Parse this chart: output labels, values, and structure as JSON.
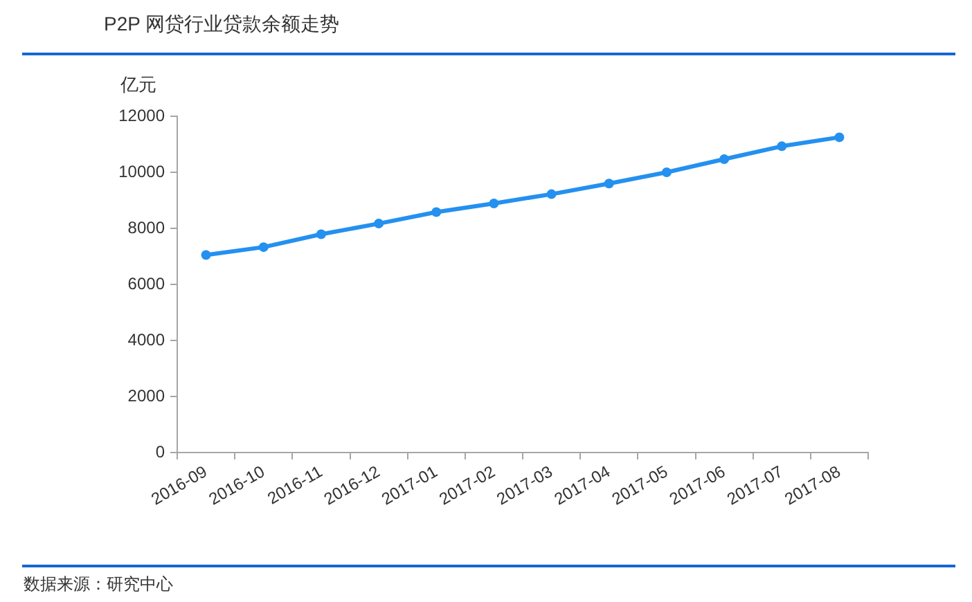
{
  "chart_data": {
    "type": "line",
    "title": "P2P 网贷行业贷款余额走势",
    "ylabel": "亿元",
    "categories": [
      "2016-09",
      "2016-10",
      "2016-11",
      "2016-12",
      "2017-01",
      "2017-02",
      "2017-03",
      "2017-04",
      "2017-05",
      "2017-06",
      "2017-07",
      "2017-08"
    ],
    "values": [
      7050,
      7330,
      7790,
      8170,
      8580,
      8890,
      9220,
      9600,
      10000,
      10470,
      10930,
      11250
    ],
    "color": "#2490f0",
    "ylim": [
      0,
      12000
    ],
    "yticks": [
      0,
      2000,
      4000,
      6000,
      8000,
      10000,
      12000
    ],
    "marker": "circle",
    "annotations": [
      "数据来源：研究中心"
    ]
  }
}
